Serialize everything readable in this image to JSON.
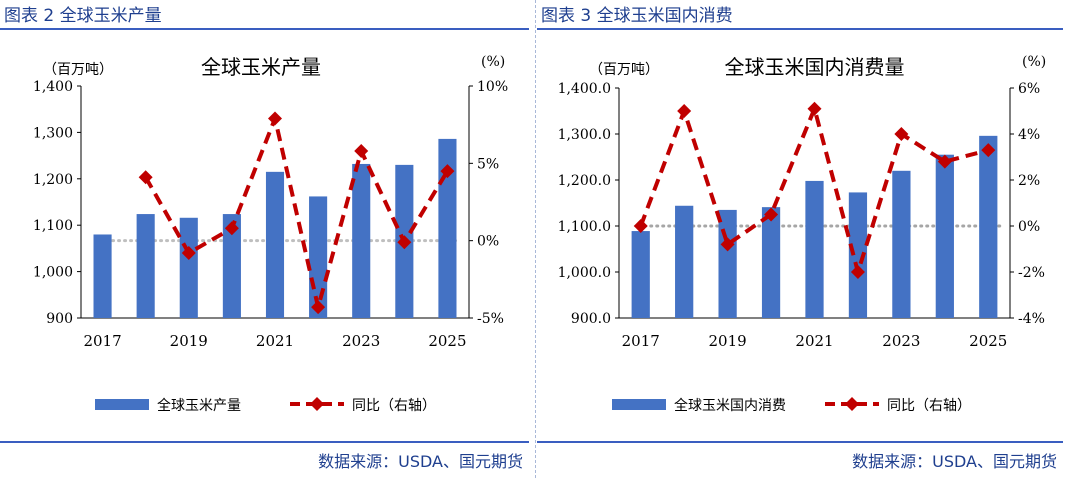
{
  "panels": [
    {
      "figure_title": "图表 2  全球玉米产量",
      "source": "数据来源：USDA、国元期货",
      "chart_data": {
        "type": "bar",
        "title": "全球玉米产量",
        "left_unit": "（百万吨）",
        "right_unit": "(%)",
        "x": [
          2017,
          2018,
          2019,
          2020,
          2021,
          2022,
          2023,
          2024,
          2025
        ],
        "x_tick_labels": [
          "2017",
          "2019",
          "2021",
          "2023",
          "2025"
        ],
        "left_ylim": [
          900,
          1400
        ],
        "left_ticks": [
          "900",
          "1,000",
          "1,100",
          "1,200",
          "1,300",
          "1,400"
        ],
        "right_ylim": [
          -5,
          10
        ],
        "right_ticks": [
          "-5%",
          "0%",
          "5%",
          "10%"
        ],
        "series": [
          {
            "name": "全球玉米产量",
            "type": "bar",
            "axis": "left",
            "color": "#4472c4",
            "values": [
              1080,
              1124,
              1116,
              1124,
              1215,
              1162,
              1232,
              1230,
              1286
            ]
          },
          {
            "name": "同比（右轴）",
            "type": "line",
            "axis": "right",
            "color": "#c00000",
            "values": [
              null,
              4.1,
              -0.8,
              0.8,
              7.9,
              -4.3,
              5.8,
              -0.1,
              4.5
            ]
          }
        ],
        "zero_line_color": "#bfbfbf"
      }
    },
    {
      "figure_title": "图表 3  全球玉米国内消费",
      "source": "数据来源：USDA、国元期货",
      "chart_data": {
        "type": "bar",
        "title": "全球玉米国内消费量",
        "left_unit": "（百万吨）",
        "right_unit": "(%)",
        "x": [
          2017,
          2018,
          2019,
          2020,
          2021,
          2022,
          2023,
          2024,
          2025
        ],
        "x_tick_labels": [
          "2017",
          "2019",
          "2021",
          "2023",
          "2025"
        ],
        "left_ylim": [
          900,
          1400
        ],
        "left_ticks": [
          "900.0",
          "1,000.0",
          "1,100.0",
          "1,200.0",
          "1,300.0",
          "1,400.0"
        ],
        "right_ylim": [
          -4,
          6
        ],
        "right_ticks": [
          "-4%",
          "-2%",
          "0%",
          "2%",
          "4%",
          "6%"
        ],
        "series": [
          {
            "name": "全球玉米国内消费",
            "type": "bar",
            "axis": "left",
            "color": "#4472c4",
            "values": [
              1089,
              1144,
              1135,
              1141,
              1198,
              1173,
              1220,
              1255,
              1296
            ]
          },
          {
            "name": "同比（右轴）",
            "type": "line",
            "axis": "right",
            "color": "#c00000",
            "values": [
              0.0,
              5.0,
              -0.8,
              0.5,
              5.1,
              -2.0,
              4.0,
              2.8,
              3.3
            ]
          }
        ],
        "zero_line_color": "#a6a6a6"
      }
    }
  ]
}
